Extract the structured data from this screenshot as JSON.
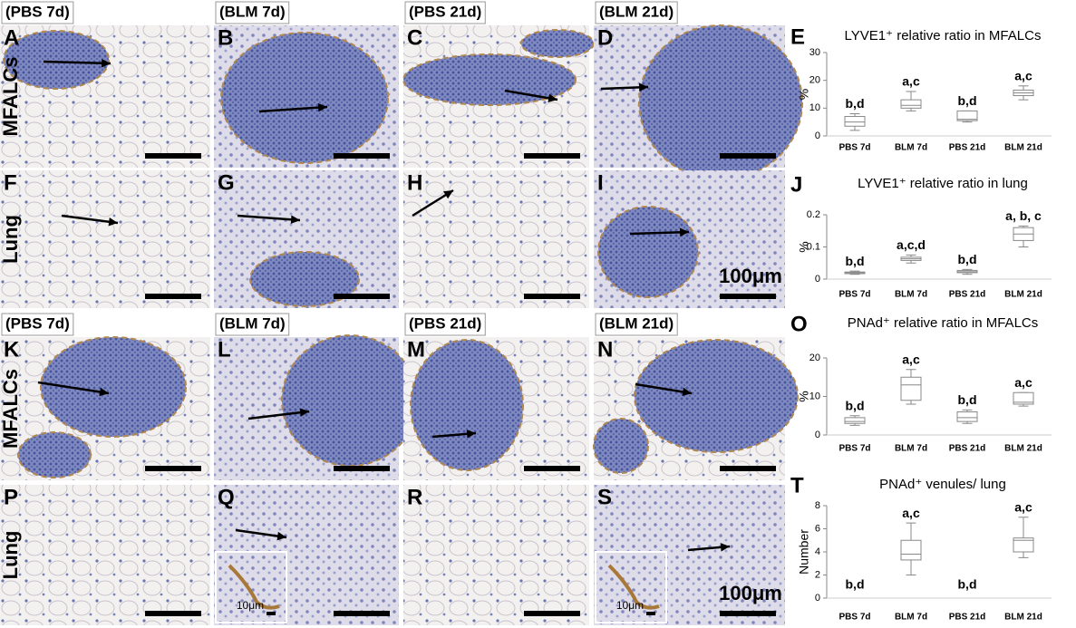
{
  "figure": {
    "sections": [
      {
        "column_labels": [
          "(PBS 7d)",
          "(BLM 7d)",
          "(PBS 21d)",
          "(BLM 21d)"
        ],
        "row_labels": [
          "MFALCs",
          "Lung"
        ],
        "panels": [
          [
            "A",
            "B",
            "C",
            "D"
          ],
          [
            "F",
            "G",
            "H",
            "I"
          ]
        ],
        "scale_label": "100μm",
        "inset_scale_labels": []
      },
      {
        "column_labels": [
          "(PBS 7d)",
          "(BLM 7d)",
          "(PBS 21d)",
          "(BLM 21d)"
        ],
        "row_labels": [
          "MFALCs",
          "Lung"
        ],
        "panels": [
          [
            "K",
            "L",
            "M",
            "N"
          ],
          [
            "P",
            "Q",
            "R",
            "S"
          ]
        ],
        "scale_label": "100μm",
        "inset_scale_labels": [
          "10μm",
          "10μm"
        ]
      }
    ]
  },
  "chart_data": [
    {
      "type": "box",
      "panel": "E",
      "title": "LYVE1⁺ relative ratio in MFALCs",
      "ylabel": "%",
      "categories": [
        "PBS 7d",
        "BLM 7d",
        "PBS 21d",
        "BLM 21d"
      ],
      "color": "#888888",
      "boxes": [
        {
          "min": 2,
          "q1": 3.5,
          "median": 5,
          "q3": 7,
          "max": 8
        },
        {
          "min": 9,
          "q1": 10,
          "median": 11,
          "q3": 13,
          "max": 16
        },
        {
          "min": 5,
          "q1": 5.5,
          "median": 6,
          "q3": 9,
          "max": 9
        },
        {
          "min": 13,
          "q1": 14.5,
          "median": 15.5,
          "q3": 16.5,
          "max": 18
        }
      ],
      "annotations": [
        "b,d",
        "a,c",
        "b,d",
        "a,c"
      ],
      "ylim": [
        0,
        30
      ],
      "yticks": [
        0,
        10,
        20,
        30
      ]
    },
    {
      "type": "box",
      "panel": "J",
      "title": "LYVE1⁺ relative ratio in lung",
      "ylabel": "%",
      "categories": [
        "PBS 7d",
        "BLM 7d",
        "PBS 21d",
        "BLM 21d"
      ],
      "color": "#888888",
      "boxes": [
        {
          "min": 0.015,
          "q1": 0.017,
          "median": 0.02,
          "q3": 0.022,
          "max": 0.025
        },
        {
          "min": 0.05,
          "q1": 0.058,
          "median": 0.063,
          "q3": 0.068,
          "max": 0.075
        },
        {
          "min": 0.015,
          "q1": 0.02,
          "median": 0.023,
          "q3": 0.027,
          "max": 0.03
        },
        {
          "min": 0.1,
          "q1": 0.12,
          "median": 0.14,
          "q3": 0.16,
          "max": 0.165
        }
      ],
      "annotations": [
        "b,d",
        "a,c,d",
        "b,d",
        "a, b, c"
      ],
      "ylim": [
        0,
        0.2
      ],
      "yticks": [
        0,
        0.1,
        0.2
      ]
    },
    {
      "type": "box",
      "panel": "O",
      "title": "PNAd⁺ relative ratio in MFALCs",
      "ylabel": "%",
      "categories": [
        "PBS 7d",
        "BLM 7d",
        "PBS 21d",
        "BLM 21d"
      ],
      "color": "#888888",
      "boxes": [
        {
          "min": 2.5,
          "q1": 3,
          "median": 3.5,
          "q3": 4.5,
          "max": 5
        },
        {
          "min": 8,
          "q1": 9,
          "median": 13,
          "q3": 15,
          "max": 17
        },
        {
          "min": 3,
          "q1": 3.5,
          "median": 4.5,
          "q3": 6,
          "max": 6.5
        },
        {
          "min": 7.5,
          "q1": 8,
          "median": 8.5,
          "q3": 11,
          "max": 11
        }
      ],
      "annotations": [
        "b,d",
        "a,c",
        "b,d",
        "a,c"
      ],
      "ylim": [
        0,
        20
      ],
      "yticks": [
        0,
        10,
        20
      ]
    },
    {
      "type": "box",
      "panel": "T",
      "title": "PNAd⁺ venules/  lung",
      "ylabel": "Number",
      "categories": [
        "PBS 7d",
        "BLM 7d",
        "PBS 21d",
        "BLM 21d"
      ],
      "color": "#888888",
      "boxes": [
        null,
        {
          "min": 2,
          "q1": 3.3,
          "median": 3.8,
          "q3": 5,
          "max": 6.5
        },
        null,
        {
          "min": 3.5,
          "q1": 4,
          "median": 5,
          "q3": 5.2,
          "max": 7
        }
      ],
      "annotations": [
        "b,d",
        "a,c",
        "b,d",
        "a,c"
      ],
      "ylim": [
        0,
        8
      ],
      "yticks": [
        0,
        2,
        4,
        6,
        8
      ]
    }
  ]
}
